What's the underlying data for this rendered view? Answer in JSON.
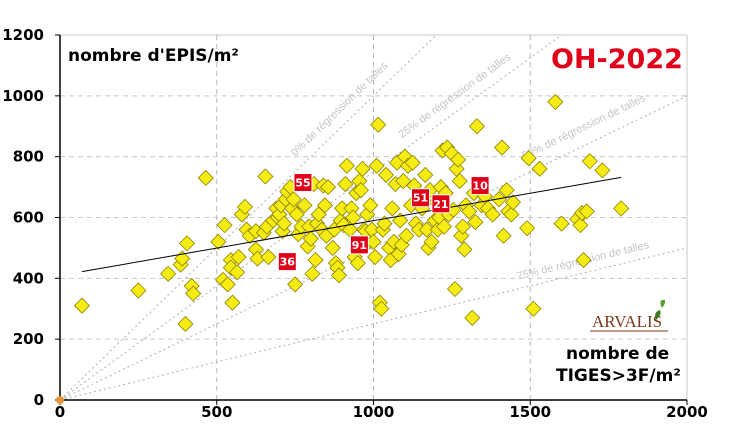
{
  "chart_data": {
    "type": "scatter",
    "title": "OH-2022",
    "ylabel": "nombre d'EPIS/m²",
    "xlabel_line1": "nombre de",
    "xlabel_line2": "TIGES>3F/m²",
    "xlim": [
      0,
      2000
    ],
    "ylim": [
      0,
      1200
    ],
    "xticks": [
      0,
      500,
      1000,
      1500,
      2000
    ],
    "yticks": [
      0,
      200,
      400,
      600,
      800,
      1000,
      1200
    ],
    "grid": "dashed vertical + horizontal",
    "reference_lines": [
      {
        "label": "0% de régression de talles",
        "slope": 1.0
      },
      {
        "label": "25% de régression de talles",
        "slope": 0.75
      },
      {
        "label": "50% de régression de talles",
        "slope": 0.5
      },
      {
        "label": "75% de régression de talles",
        "slope": 0.25
      }
    ],
    "trendline": {
      "x": [
        70,
        1790
      ],
      "y": [
        422,
        732
      ]
    },
    "origin_marker": {
      "x": 0,
      "y": 0,
      "color": "#e8923a"
    },
    "colors": {
      "points": "#f6ec13",
      "point_border": "#8c8200",
      "highlight": "#e0001a",
      "title": "#e0001a"
    },
    "highlighted": [
      {
        "label": "55",
        "x": 775,
        "y": 715
      },
      {
        "label": "36",
        "x": 725,
        "y": 455
      },
      {
        "label": "91",
        "x": 955,
        "y": 510
      },
      {
        "label": "51",
        "x": 1150,
        "y": 665
      },
      {
        "label": "21",
        "x": 1215,
        "y": 645
      },
      {
        "label": "10",
        "x": 1340,
        "y": 705
      }
    ],
    "points": [
      [
        70,
        310
      ],
      [
        250,
        360
      ],
      [
        345,
        415
      ],
      [
        385,
        445
      ],
      [
        390,
        465
      ],
      [
        400,
        250
      ],
      [
        405,
        515
      ],
      [
        420,
        375
      ],
      [
        425,
        350
      ],
      [
        465,
        730
      ],
      [
        505,
        520
      ],
      [
        525,
        575
      ],
      [
        520,
        395
      ],
      [
        535,
        380
      ],
      [
        545,
        460
      ],
      [
        545,
        435
      ],
      [
        550,
        320
      ],
      [
        565,
        420
      ],
      [
        570,
        470
      ],
      [
        580,
        610
      ],
      [
        590,
        635
      ],
      [
        595,
        560
      ],
      [
        605,
        540
      ],
      [
        625,
        555
      ],
      [
        625,
        495
      ],
      [
        630,
        465
      ],
      [
        650,
        550
      ],
      [
        655,
        735
      ],
      [
        660,
        570
      ],
      [
        665,
        470
      ],
      [
        680,
        590
      ],
      [
        690,
        630
      ],
      [
        695,
        600
      ],
      [
        700,
        610
      ],
      [
        705,
        640
      ],
      [
        710,
        555
      ],
      [
        715,
        580
      ],
      [
        720,
        660
      ],
      [
        725,
        685
      ],
      [
        735,
        700
      ],
      [
        740,
        630
      ],
      [
        745,
        660
      ],
      [
        750,
        380
      ],
      [
        755,
        610
      ],
      [
        760,
        545
      ],
      [
        770,
        570
      ],
      [
        780,
        640
      ],
      [
        790,
        505
      ],
      [
        795,
        570
      ],
      [
        800,
        530
      ],
      [
        805,
        415
      ],
      [
        810,
        710
      ],
      [
        815,
        460
      ],
      [
        820,
        580
      ],
      [
        825,
        610
      ],
      [
        835,
        560
      ],
      [
        840,
        705
      ],
      [
        845,
        640
      ],
      [
        850,
        540
      ],
      [
        855,
        700
      ],
      [
        870,
        500
      ],
      [
        875,
        560
      ],
      [
        880,
        450
      ],
      [
        885,
        435
      ],
      [
        890,
        410
      ],
      [
        895,
        590
      ],
      [
        900,
        630
      ],
      [
        905,
        575
      ],
      [
        910,
        710
      ],
      [
        915,
        770
      ],
      [
        925,
        560
      ],
      [
        930,
        630
      ],
      [
        935,
        600
      ],
      [
        940,
        470
      ],
      [
        945,
        680
      ],
      [
        950,
        450
      ],
      [
        955,
        720
      ],
      [
        960,
        690
      ],
      [
        965,
        760
      ],
      [
        970,
        560
      ],
      [
        975,
        555
      ],
      [
        980,
        610
      ],
      [
        985,
        520
      ],
      [
        990,
        640
      ],
      [
        995,
        560
      ],
      [
        1000,
        520
      ],
      [
        1005,
        470
      ],
      [
        1010,
        770
      ],
      [
        1015,
        905
      ],
      [
        1020,
        320
      ],
      [
        1025,
        300
      ],
      [
        1030,
        560
      ],
      [
        1035,
        580
      ],
      [
        1040,
        740
      ],
      [
        1050,
        500
      ],
      [
        1055,
        460
      ],
      [
        1060,
        630
      ],
      [
        1065,
        520
      ],
      [
        1070,
        710
      ],
      [
        1075,
        780
      ],
      [
        1080,
        480
      ],
      [
        1085,
        590
      ],
      [
        1090,
        510
      ],
      [
        1095,
        720
      ],
      [
        1100,
        800
      ],
      [
        1105,
        540
      ],
      [
        1110,
        770
      ],
      [
        1120,
        640
      ],
      [
        1125,
        780
      ],
      [
        1130,
        705
      ],
      [
        1135,
        580
      ],
      [
        1145,
        560
      ],
      [
        1155,
        630
      ],
      [
        1165,
        740
      ],
      [
        1170,
        560
      ],
      [
        1175,
        500
      ],
      [
        1180,
        690
      ],
      [
        1185,
        520
      ],
      [
        1195,
        590
      ],
      [
        1200,
        650
      ],
      [
        1205,
        560
      ],
      [
        1210,
        600
      ],
      [
        1215,
        700
      ],
      [
        1220,
        820
      ],
      [
        1225,
        570
      ],
      [
        1230,
        680
      ],
      [
        1235,
        830
      ],
      [
        1240,
        610
      ],
      [
        1250,
        810
      ],
      [
        1255,
        625
      ],
      [
        1260,
        365
      ],
      [
        1265,
        760
      ],
      [
        1270,
        790
      ],
      [
        1275,
        720
      ],
      [
        1280,
        540
      ],
      [
        1285,
        570
      ],
      [
        1290,
        495
      ],
      [
        1295,
        640
      ],
      [
        1305,
        620
      ],
      [
        1315,
        270
      ],
      [
        1320,
        680
      ],
      [
        1325,
        585
      ],
      [
        1330,
        900
      ],
      [
        1345,
        640
      ],
      [
        1355,
        670
      ],
      [
        1365,
        630
      ],
      [
        1380,
        610
      ],
      [
        1400,
        660
      ],
      [
        1410,
        830
      ],
      [
        1415,
        540
      ],
      [
        1425,
        690
      ],
      [
        1430,
        620
      ],
      [
        1440,
        610
      ],
      [
        1445,
        650
      ],
      [
        1490,
        565
      ],
      [
        1495,
        795
      ],
      [
        1510,
        300
      ],
      [
        1530,
        760
      ],
      [
        1580,
        980
      ],
      [
        1600,
        580
      ],
      [
        1650,
        595
      ],
      [
        1660,
        575
      ],
      [
        1665,
        615
      ],
      [
        1670,
        460
      ],
      [
        1680,
        620
      ],
      [
        1690,
        785
      ],
      [
        1730,
        755
      ],
      [
        1790,
        630
      ]
    ]
  },
  "logo": {
    "text": "ARVALIS",
    "colors": {
      "text": "#7a3a1a",
      "leaf": "#5aa02c"
    }
  }
}
